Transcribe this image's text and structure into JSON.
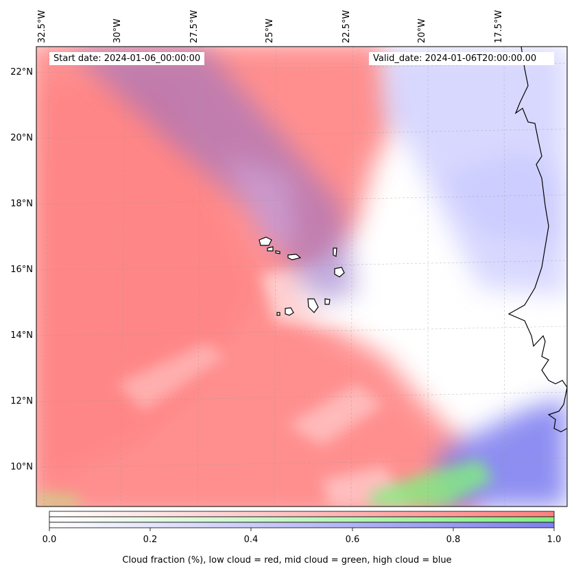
{
  "map": {
    "longitude_ticks": [
      "32.5°W",
      "30°W",
      "27.5°W",
      "25°W",
      "22.5°W",
      "20°W",
      "17.5°W"
    ],
    "latitude_ticks": [
      "22°N",
      "20°N",
      "18°N",
      "16°N",
      "14°N",
      "12°N",
      "10°N"
    ],
    "start_date": "Start date: 2024-01-06_00:00:00",
    "valid_date": "Valid_date: 2024-01-06T20:00:00.00",
    "colors": {
      "low_cloud": "#ff8080",
      "mid_cloud": "#80f080",
      "high_cloud": "#8080f0",
      "coastline": "#000000"
    }
  },
  "colorbar": {
    "ticks": [
      "0.0",
      "0.2",
      "0.4",
      "0.6",
      "0.8",
      "1.0"
    ],
    "label": "Cloud fraction (%), low cloud = red, mid cloud = green, high cloud = blue"
  }
}
